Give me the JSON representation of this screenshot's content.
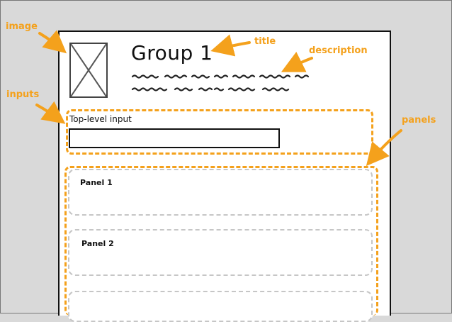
{
  "annotations": {
    "image": "image",
    "title": "title",
    "description": "description",
    "inputs": "inputs",
    "panels": "panels"
  },
  "group": {
    "title": "Group 1"
  },
  "inputs": {
    "label": "Top-level input",
    "value": ""
  },
  "panels": [
    {
      "title": "Panel 1"
    },
    {
      "title": "Panel 2"
    }
  ],
  "colors": {
    "accent": "#f4a11c",
    "panel_border": "#c6c6c6",
    "background": "#d9d9d9"
  }
}
